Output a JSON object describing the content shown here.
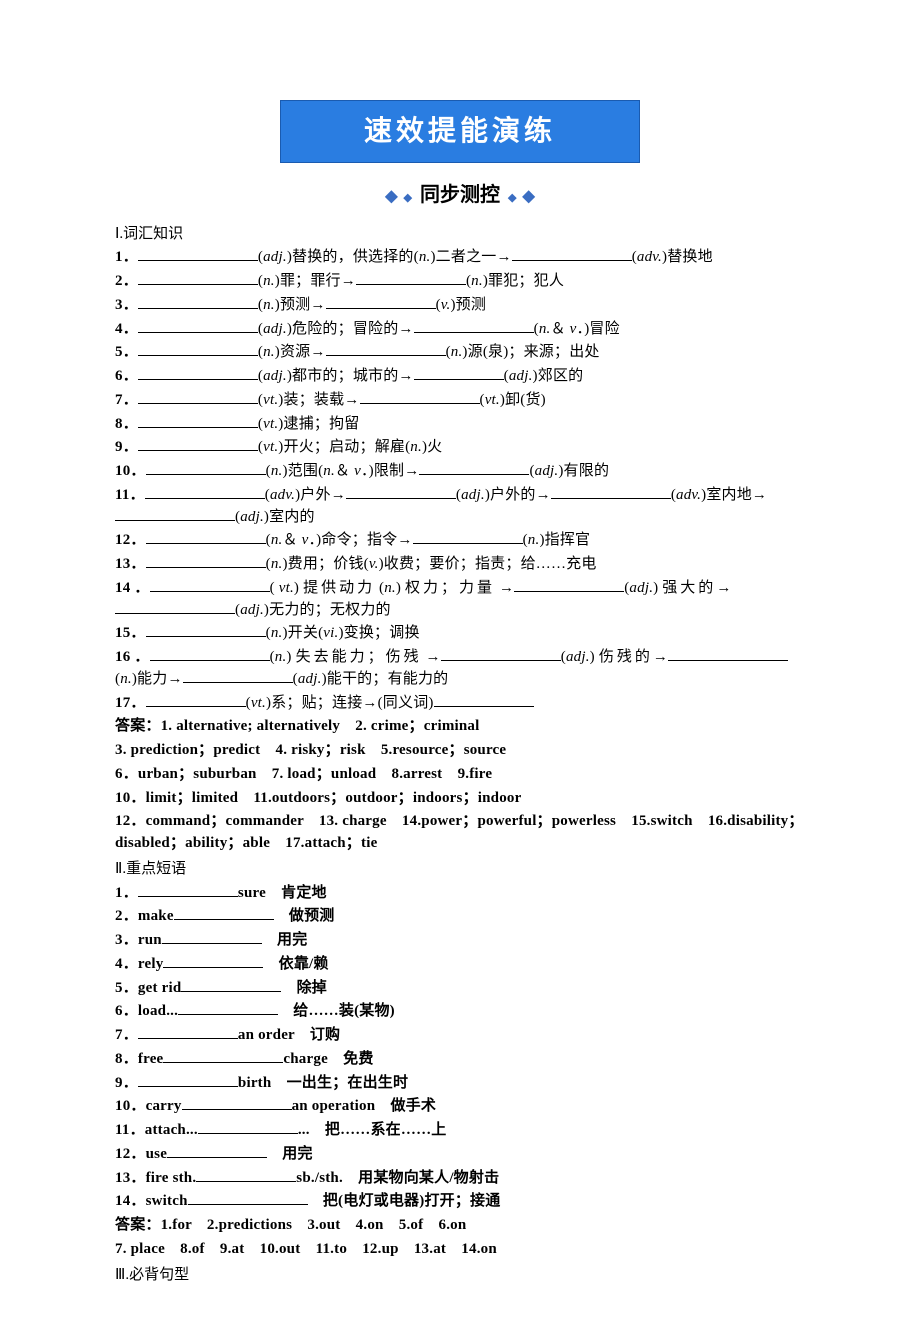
{
  "banner": {
    "text": "速效提能演练",
    "bg": "#2a7de1",
    "fg": "#ffffff"
  },
  "subhead": {
    "text": "同步测控",
    "diamond_color": "#3a6dc2"
  },
  "section1": {
    "title": "Ⅰ.词汇知识",
    "items": [
      {
        "num": "1．",
        "parts": [
          {
            "b": "w120"
          },
          {
            "t": "(",
            "p": "adj.",
            "t2": ")替换的，供选择的("
          },
          {
            "p": "n.",
            "t3": ")二者之一→"
          },
          {
            "b": "w120"
          },
          {
            "t4": "(",
            "p2": "adv.",
            "t5": ")替换地"
          }
        ]
      },
      {
        "num": "2．",
        "parts": [
          {
            "b": "w120"
          },
          {
            "t": "("
          },
          {
            "p": "n.",
            "t2": ")罪；罪行→"
          },
          {
            "b": "w110"
          },
          {
            "t3": "("
          },
          {
            "p2": "n.",
            "t4": ")罪犯；犯人"
          }
        ]
      },
      {
        "num": "3．",
        "parts": [
          {
            "b": "w120"
          },
          {
            "t": "("
          },
          {
            "p": "n.",
            "t2": ")预测→"
          },
          {
            "b": "w110"
          },
          {
            "t3": "("
          },
          {
            "p2": "v.",
            "t4": ")预测"
          }
        ]
      },
      {
        "num": "4．",
        "parts": [
          {
            "b": "w120"
          },
          {
            "t": "("
          },
          {
            "p": "adj.",
            "t2": ")危险的；冒险的→"
          },
          {
            "b": "w120"
          },
          {
            "t3": "("
          },
          {
            "p2": "n.",
            "t4": "＆ "
          },
          {
            "p3": "v",
            "t5": "．)冒险"
          }
        ]
      },
      {
        "num": "5．",
        "parts": [
          {
            "b": "w120"
          },
          {
            "t": "("
          },
          {
            "p": "n.",
            "t2": ")资源→"
          },
          {
            "b": "w120"
          },
          {
            "t3": "("
          },
          {
            "p2": "n.",
            "t4": ")源(泉)；来源；出处"
          }
        ]
      },
      {
        "num": "6．",
        "parts": [
          {
            "b": "w120"
          },
          {
            "t": "("
          },
          {
            "p": "adj.",
            "t2": ")都市的；城市的→"
          },
          {
            "b": "w90"
          },
          {
            "t3": "("
          },
          {
            "p2": "adj.",
            "t4": ")郊区的"
          }
        ]
      },
      {
        "num": "7．",
        "parts": [
          {
            "b": "w120"
          },
          {
            "t": "("
          },
          {
            "p": "vt.",
            "t2": ")装；装载→"
          },
          {
            "b": "w120"
          },
          {
            "t3": "("
          },
          {
            "p2": "vt.",
            "t4": ")卸(货)"
          }
        ]
      },
      {
        "num": "8．",
        "parts": [
          {
            "b": "w120"
          },
          {
            "t": "("
          },
          {
            "p": "vt.",
            "t2": ")逮捕；拘留"
          }
        ]
      },
      {
        "num": "9．",
        "parts": [
          {
            "b": "w120"
          },
          {
            "t": "("
          },
          {
            "p": "vt.",
            "t2": ")开火；启动；解雇("
          },
          {
            "p2": "n.",
            "t3": ")火"
          }
        ]
      },
      {
        "num": "10．",
        "parts": [
          {
            "b": "w120"
          },
          {
            "t": "("
          },
          {
            "p": "n.",
            "t2": ")范围("
          },
          {
            "p2": "n.",
            "t3": "＆ "
          },
          {
            "p3": "v",
            "t4": "．)限制→"
          },
          {
            "b": "w110"
          },
          {
            "t5": "("
          },
          {
            "p4": "adj.",
            "t6": ")有限的"
          }
        ]
      },
      {
        "num": "11．",
        "parts": [
          {
            "b": "w120"
          },
          {
            "t": "("
          },
          {
            "p": "adv.",
            "t2": ")户外→"
          },
          {
            "b": "w110"
          },
          {
            "t3": "("
          },
          {
            "p2": "adj.",
            "t4": ")户外的→"
          },
          {
            "b": "w120"
          },
          {
            "t5": "("
          },
          {
            "p3": "adv.",
            "t6": ")室内地→"
          },
          {
            "b": "w120"
          },
          {
            "t7": "("
          },
          {
            "p4": "adj.",
            "t8": ")室内的"
          }
        ]
      },
      {
        "num": "12．",
        "parts": [
          {
            "b": "w120"
          },
          {
            "t": "("
          },
          {
            "p": "n.",
            "t2": "＆ "
          },
          {
            "p2": "v",
            "t3": "．)命令；指令→"
          },
          {
            "b": "w110"
          },
          {
            "t4": "("
          },
          {
            "p3": "n.",
            "t5": ")指挥官"
          }
        ]
      },
      {
        "num": "13．",
        "parts": [
          {
            "b": "w120"
          },
          {
            "t": "("
          },
          {
            "p": "n.",
            "t2": ")费用；价钱("
          },
          {
            "p2": "v.",
            "t3": ")收费；要价；指责；给……充电"
          }
        ]
      },
      {
        "num": "14 ．",
        "parts": [
          {
            "b": "w120"
          },
          {
            "t": "( "
          },
          {
            "p": "vt.",
            "t2": ") "
          },
          {
            "sp": "提供动力"
          },
          {
            "t3": " ("
          },
          {
            "p2": "n.",
            "t4": ") "
          },
          {
            "sp2": "权力；力量"
          },
          {
            "t5": " →"
          },
          {
            "b": "w110"
          },
          {
            "t6": "("
          },
          {
            "p3": "adj.",
            "t7": ") "
          },
          {
            "sp3": "强大的"
          },
          {
            "t8": "→"
          },
          {
            "b": "w120"
          },
          {
            "t9": "("
          },
          {
            "p4": "adj.",
            "t10": ")无力的；无权力的"
          }
        ]
      },
      {
        "num": "15．",
        "parts": [
          {
            "b": "w120"
          },
          {
            "t": "("
          },
          {
            "p": "n.",
            "t2": ")开关("
          },
          {
            "p2": "vi.",
            "t3": ")变换；调换"
          }
        ]
      },
      {
        "num": "16 ．",
        "parts": [
          {
            "b": "w120"
          },
          {
            "t": "("
          },
          {
            "p": "n.",
            "t2": ") "
          },
          {
            "sp": "失去能力；伤残"
          },
          {
            "t3": " →"
          },
          {
            "b": "w120"
          },
          {
            "t4": "("
          },
          {
            "p2": "adj.",
            "t5": ") "
          },
          {
            "sp2": "伤残的"
          },
          {
            "t6": "→"
          },
          {
            "b": "w120"
          },
          {
            "t7": "("
          },
          {
            "p3": "n.",
            "t8": ")能力→"
          },
          {
            "b": "w110"
          },
          {
            "t9": "("
          },
          {
            "p4": "adj.",
            "t10": ")能干的；有能力的"
          }
        ]
      },
      {
        "num": "17．",
        "parts": [
          {
            "b": "w100"
          },
          {
            "t": "("
          },
          {
            "p": "vt.",
            "t2": ")系；贴；连接→(同义词)"
          },
          {
            "b": "w100"
          }
        ]
      }
    ],
    "answers": [
      "答案：1. alternative; alternatively　2. crime；criminal",
      "3. prediction；predict　4. risky；risk　5.resource；source",
      "6．urban；suburban　7. load；unload　8.arrest　9.fire",
      "10．limit；limited　11.outdoors；outdoor；indoors；indoor",
      "12．command；commander　13. charge　14.power；powerful；powerless　15.switch　16.disability；disabled；ability；able　17.attach；tie"
    ]
  },
  "section2": {
    "title": "Ⅱ.重点短语",
    "items": [
      {
        "num": "1．",
        "pre": "",
        "b": "w100",
        "post": "sure　肯定地"
      },
      {
        "num": "2．",
        "pre": "make",
        "b": "w100",
        "post": "　做预测"
      },
      {
        "num": "3．",
        "pre": "run",
        "b": "w100",
        "post": "　用完"
      },
      {
        "num": "4．",
        "pre": "rely",
        "b": "w100",
        "post": "　依靠/赖"
      },
      {
        "num": "5．",
        "pre": "get rid",
        "b": "w100",
        "post": "　除掉"
      },
      {
        "num": "6．",
        "pre": "load...",
        "b": "w100",
        "post": "　给……装(某物)"
      },
      {
        "num": "7．",
        "pre": "",
        "b": "w100",
        "post": "an order　订购"
      },
      {
        "num": "8．",
        "pre": "free",
        "b": "w120",
        "post": "charge　免费"
      },
      {
        "num": "9．",
        "pre": "",
        "b": "w100",
        "post": "birth　一出生；在出生时"
      },
      {
        "num": "10．",
        "pre": "carry",
        "b": "w110",
        "post": "an operation　做手术"
      },
      {
        "num": "11．",
        "pre": "attach...",
        "b": "w100",
        "post": "...　把……系在……上"
      },
      {
        "num": "12．",
        "pre": "use",
        "b": "w100",
        "post": "　用完"
      },
      {
        "num": "13．",
        "pre": "fire sth.",
        "b": "w100",
        "post": "sb./sth.　用某物向某人/物射击"
      },
      {
        "num": "14．",
        "pre": "switch",
        "b": "w120",
        "post": "　把(电灯或电器)打开；接通"
      }
    ],
    "answers": [
      "答案：1.for　2.predictions　3.out　4.on　5.of　6.on",
      "7. place　8.of　9.at　10.out　11.to　12.up　13.at　14.on"
    ]
  },
  "section3": {
    "title": "Ⅲ.必背句型"
  }
}
